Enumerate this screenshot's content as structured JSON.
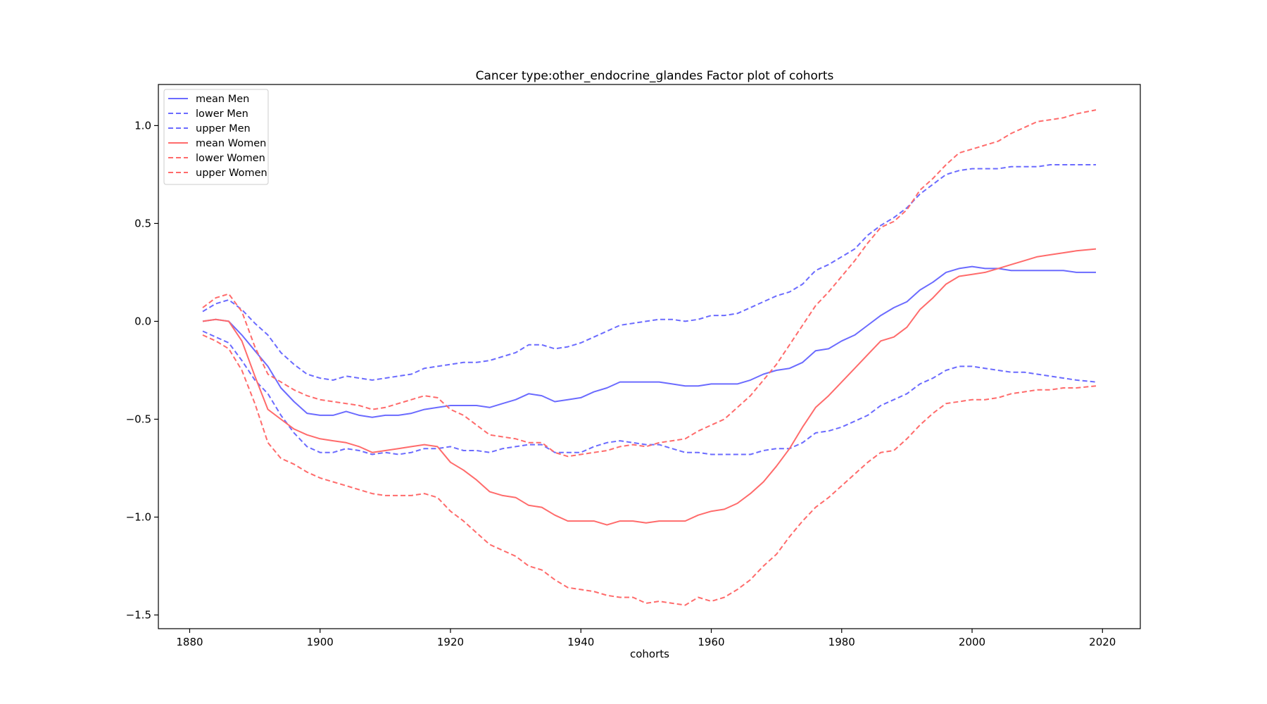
{
  "chart_data": {
    "type": "line",
    "title": "Cancer type:other_endocrine_glandes Factor plot of cohorts",
    "xlabel": "cohorts",
    "ylabel": "",
    "xlim": [
      1875.2,
      2025.8
    ],
    "ylim": [
      -1.57,
      1.21
    ],
    "x_ticks": [
      1880,
      1900,
      1920,
      1940,
      1960,
      1980,
      2000,
      2020
    ],
    "y_ticks": [
      1.0,
      0.5,
      0.0,
      -0.5,
      -1.0,
      -1.5
    ],
    "x_tick_labels": [
      "1880",
      "1900",
      "1920",
      "1940",
      "1960",
      "1980",
      "2000",
      "2020"
    ],
    "y_tick_labels": [
      "1.0",
      "0.5",
      "0.0",
      "−0.5",
      "−1.0",
      "−1.5"
    ],
    "grid": false,
    "legend_position": "top-left",
    "colors": {
      "men": "#6b6bff",
      "women": "#ff6b6b"
    },
    "x": [
      1882,
      1884,
      1886,
      1888,
      1890,
      1892,
      1894,
      1896,
      1898,
      1900,
      1902,
      1904,
      1906,
      1908,
      1910,
      1912,
      1914,
      1916,
      1918,
      1920,
      1922,
      1924,
      1926,
      1928,
      1930,
      1932,
      1934,
      1936,
      1938,
      1940,
      1942,
      1944,
      1946,
      1948,
      1950,
      1952,
      1954,
      1956,
      1958,
      1960,
      1962,
      1964,
      1966,
      1968,
      1970,
      1972,
      1974,
      1976,
      1978,
      1980,
      1982,
      1984,
      1986,
      1988,
      1990,
      1992,
      1994,
      1996,
      1998,
      2000,
      2002,
      2004,
      2006,
      2008,
      2010,
      2012,
      2014,
      2016,
      2019
    ],
    "series": [
      {
        "name": "mean Men",
        "style": "solid",
        "color": "#6b6bff",
        "values": [
          0.0,
          0.01,
          0.0,
          -0.07,
          -0.15,
          -0.23,
          -0.34,
          -0.41,
          -0.47,
          -0.48,
          -0.48,
          -0.46,
          -0.48,
          -0.49,
          -0.48,
          -0.48,
          -0.47,
          -0.45,
          -0.44,
          -0.43,
          -0.43,
          -0.43,
          -0.44,
          -0.42,
          -0.4,
          -0.37,
          -0.38,
          -0.41,
          -0.4,
          -0.39,
          -0.36,
          -0.34,
          -0.31,
          -0.31,
          -0.31,
          -0.31,
          -0.32,
          -0.33,
          -0.33,
          -0.32,
          -0.32,
          -0.32,
          -0.3,
          -0.27,
          -0.25,
          -0.24,
          -0.21,
          -0.15,
          -0.14,
          -0.1,
          -0.07,
          -0.02,
          0.03,
          0.07,
          0.1,
          0.16,
          0.2,
          0.25,
          0.27,
          0.28,
          0.27,
          0.27,
          0.26,
          0.26,
          0.26,
          0.26,
          0.26,
          0.25,
          0.25
        ]
      },
      {
        "name": "lower Men",
        "style": "dashed",
        "color": "#6b6bff",
        "values": [
          -0.05,
          -0.08,
          -0.11,
          -0.2,
          -0.3,
          -0.37,
          -0.48,
          -0.57,
          -0.64,
          -0.67,
          -0.67,
          -0.65,
          -0.66,
          -0.68,
          -0.67,
          -0.68,
          -0.67,
          -0.65,
          -0.65,
          -0.64,
          -0.66,
          -0.66,
          -0.67,
          -0.65,
          -0.64,
          -0.63,
          -0.63,
          -0.67,
          -0.67,
          -0.67,
          -0.64,
          -0.62,
          -0.61,
          -0.62,
          -0.63,
          -0.63,
          -0.65,
          -0.67,
          -0.67,
          -0.68,
          -0.68,
          -0.68,
          -0.68,
          -0.66,
          -0.65,
          -0.65,
          -0.62,
          -0.57,
          -0.56,
          -0.54,
          -0.51,
          -0.48,
          -0.43,
          -0.4,
          -0.37,
          -0.32,
          -0.29,
          -0.25,
          -0.23,
          -0.23,
          -0.24,
          -0.25,
          -0.26,
          -0.26,
          -0.27,
          -0.28,
          -0.29,
          -0.3,
          -0.31
        ]
      },
      {
        "name": "upper Men",
        "style": "dashed",
        "color": "#6b6bff",
        "values": [
          0.05,
          0.09,
          0.11,
          0.06,
          -0.01,
          -0.07,
          -0.16,
          -0.22,
          -0.27,
          -0.29,
          -0.3,
          -0.28,
          -0.29,
          -0.3,
          -0.29,
          -0.28,
          -0.27,
          -0.24,
          -0.23,
          -0.22,
          -0.21,
          -0.21,
          -0.2,
          -0.18,
          -0.16,
          -0.12,
          -0.12,
          -0.14,
          -0.13,
          -0.11,
          -0.08,
          -0.05,
          -0.02,
          -0.01,
          0.0,
          0.01,
          0.01,
          0.0,
          0.01,
          0.03,
          0.03,
          0.04,
          0.07,
          0.1,
          0.13,
          0.15,
          0.19,
          0.26,
          0.29,
          0.33,
          0.37,
          0.44,
          0.49,
          0.53,
          0.58,
          0.65,
          0.7,
          0.75,
          0.77,
          0.78,
          0.78,
          0.78,
          0.79,
          0.79,
          0.79,
          0.8,
          0.8,
          0.8,
          0.8
        ]
      },
      {
        "name": "mean Women",
        "style": "solid",
        "color": "#ff6b6b",
        "values": [
          0.0,
          0.01,
          0.0,
          -0.1,
          -0.28,
          -0.45,
          -0.5,
          -0.55,
          -0.58,
          -0.6,
          -0.61,
          -0.62,
          -0.64,
          -0.67,
          -0.66,
          -0.65,
          -0.64,
          -0.63,
          -0.64,
          -0.72,
          -0.76,
          -0.81,
          -0.87,
          -0.89,
          -0.9,
          -0.94,
          -0.95,
          -0.99,
          -1.02,
          -1.02,
          -1.02,
          -1.04,
          -1.02,
          -1.02,
          -1.03,
          -1.02,
          -1.02,
          -1.02,
          -0.99,
          -0.97,
          -0.96,
          -0.93,
          -0.88,
          -0.82,
          -0.74,
          -0.65,
          -0.54,
          -0.44,
          -0.38,
          -0.31,
          -0.24,
          -0.17,
          -0.1,
          -0.08,
          -0.03,
          0.06,
          0.12,
          0.19,
          0.23,
          0.24,
          0.25,
          0.27,
          0.29,
          0.31,
          0.33,
          0.34,
          0.35,
          0.36,
          0.37
        ]
      },
      {
        "name": "lower Women",
        "style": "dashed",
        "color": "#ff6b6b",
        "values": [
          -0.07,
          -0.1,
          -0.14,
          -0.25,
          -0.42,
          -0.62,
          -0.7,
          -0.73,
          -0.77,
          -0.8,
          -0.82,
          -0.84,
          -0.86,
          -0.88,
          -0.89,
          -0.89,
          -0.89,
          -0.88,
          -0.9,
          -0.97,
          -1.02,
          -1.08,
          -1.14,
          -1.17,
          -1.2,
          -1.25,
          -1.27,
          -1.32,
          -1.36,
          -1.37,
          -1.38,
          -1.4,
          -1.41,
          -1.41,
          -1.44,
          -1.43,
          -1.44,
          -1.45,
          -1.41,
          -1.43,
          -1.41,
          -1.37,
          -1.32,
          -1.25,
          -1.19,
          -1.1,
          -1.02,
          -0.95,
          -0.9,
          -0.84,
          -0.78,
          -0.72,
          -0.67,
          -0.66,
          -0.6,
          -0.53,
          -0.47,
          -0.42,
          -0.41,
          -0.4,
          -0.4,
          -0.39,
          -0.37,
          -0.36,
          -0.35,
          -0.35,
          -0.34,
          -0.34,
          -0.33
        ]
      },
      {
        "name": "upper Women",
        "style": "dashed",
        "color": "#ff6b6b",
        "values": [
          0.07,
          0.12,
          0.14,
          0.05,
          -0.13,
          -0.27,
          -0.31,
          -0.35,
          -0.38,
          -0.4,
          -0.41,
          -0.42,
          -0.43,
          -0.45,
          -0.44,
          -0.42,
          -0.4,
          -0.38,
          -0.39,
          -0.45,
          -0.48,
          -0.53,
          -0.58,
          -0.59,
          -0.6,
          -0.62,
          -0.62,
          -0.67,
          -0.69,
          -0.68,
          -0.67,
          -0.66,
          -0.64,
          -0.63,
          -0.64,
          -0.62,
          -0.61,
          -0.6,
          -0.56,
          -0.53,
          -0.5,
          -0.44,
          -0.38,
          -0.3,
          -0.22,
          -0.12,
          -0.02,
          0.08,
          0.15,
          0.23,
          0.31,
          0.4,
          0.48,
          0.51,
          0.57,
          0.67,
          0.73,
          0.8,
          0.86,
          0.88,
          0.9,
          0.92,
          0.96,
          0.99,
          1.02,
          1.03,
          1.04,
          1.06,
          1.08
        ]
      }
    ]
  }
}
